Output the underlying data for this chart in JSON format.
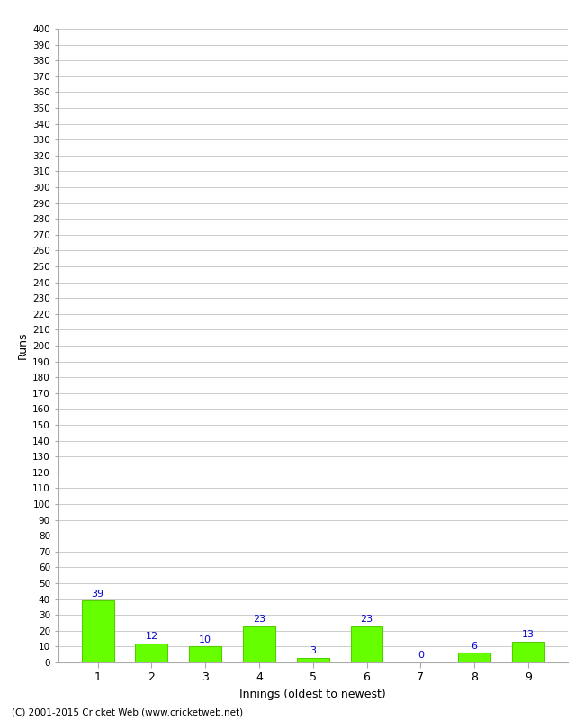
{
  "title": "",
  "xlabel": "Innings (oldest to newest)",
  "ylabel": "Runs",
  "categories": [
    "1",
    "2",
    "3",
    "4",
    "5",
    "6",
    "7",
    "8",
    "9"
  ],
  "values": [
    39,
    12,
    10,
    23,
    3,
    23,
    0,
    6,
    13
  ],
  "bar_color": "#66ff00",
  "bar_edge_color": "#55cc00",
  "label_color": "#0000cc",
  "ylim": [
    0,
    400
  ],
  "background_color": "#ffffff",
  "grid_color": "#cccccc",
  "footer": "(C) 2001-2015 Cricket Web (www.cricketweb.net)"
}
